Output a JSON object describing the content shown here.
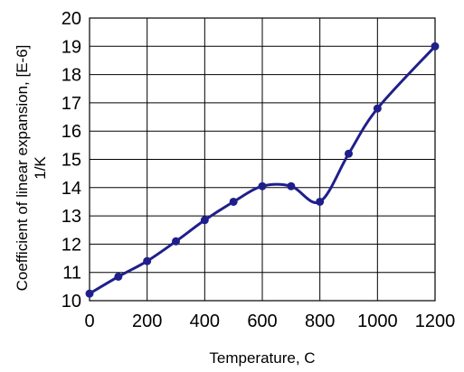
{
  "chart_data": {
    "type": "line",
    "xlabel": "Temperature, C",
    "ylabel": [
      "Coefficient of linear expansion, [E-6]",
      "1/K"
    ],
    "xlim": [
      0,
      1200
    ],
    "ylim": [
      10,
      20
    ],
    "xticks": [
      "0",
      "200",
      "400",
      "600",
      "800",
      "1000",
      "1200"
    ],
    "yticks": [
      "10",
      "11",
      "12",
      "13",
      "14",
      "15",
      "16",
      "17",
      "18",
      "19",
      "20"
    ],
    "grid": true,
    "series": [
      {
        "x": [
          0,
          100,
          200,
          300,
          400,
          500,
          600,
          700,
          800,
          900,
          1000,
          1200
        ],
        "values": [
          10.25,
          10.85,
          11.4,
          12.1,
          12.85,
          13.5,
          14.05,
          14.05,
          13.5,
          15.2,
          16.8,
          19.0
        ],
        "color": "#1f1f8c",
        "markers": true
      }
    ]
  }
}
